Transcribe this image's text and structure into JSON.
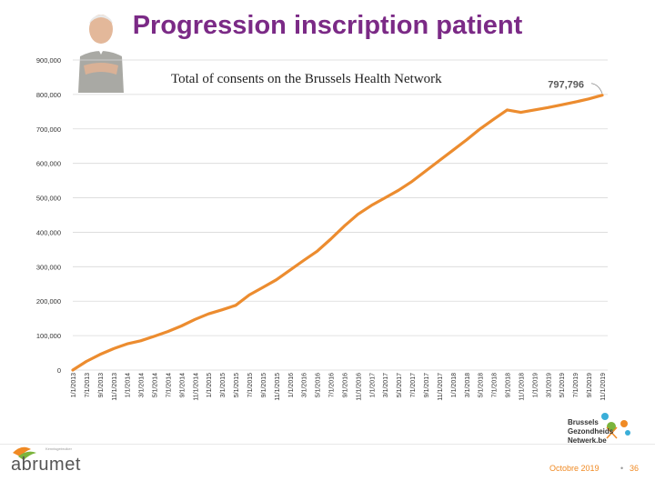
{
  "slide": {
    "title": "Progression inscription patient",
    "footer_date": "Octobre 2019",
    "footer_separator": "•",
    "page_number": "36",
    "logo_left_small": "Kennisgebruiker",
    "logo_left_text": "abrumet",
    "logo_right_line1": "Brussels",
    "logo_right_line2": "Gezondheids",
    "logo_right_line3": "Netwerk.be"
  },
  "colors": {
    "title": "#7b2a86",
    "line": "#ec8c2f",
    "grid": "#d9d9d9",
    "footer": "#f08a24"
  },
  "chart_data": {
    "type": "line",
    "title": "Total of consents on the Brussels Health Network",
    "xlabel": "",
    "ylabel": "",
    "ylim": [
      0,
      900000
    ],
    "yticks": [
      "0",
      "100,000",
      "200,000",
      "300,000",
      "400,000",
      "500,000",
      "600,000",
      "700,000",
      "800,000",
      "900,000"
    ],
    "grid": true,
    "final_label": "797,796",
    "x_labels": [
      "1/1/2013",
      "7/1/2013",
      "9/1/2013",
      "11/1/2013",
      "1/1/2014",
      "3/1/2014",
      "5/1/2014",
      "7/1/2014",
      "9/1/2014",
      "11/1/2014",
      "1/1/2015",
      "3/1/2015",
      "5/1/2015",
      "7/1/2015",
      "9/1/2015",
      "11/1/2015",
      "1/1/2016",
      "3/1/2016",
      "5/1/2016",
      "7/1/2016",
      "9/1/2016",
      "11/1/2016",
      "1/1/2017",
      "3/1/2017",
      "5/1/2017",
      "7/1/2017",
      "9/1/2017",
      "11/1/2017",
      "1/1/2018",
      "3/1/2018",
      "5/1/2018",
      "7/1/2018",
      "9/1/2018",
      "11/1/2018",
      "1/1/2019",
      "3/1/2019",
      "5/1/2019",
      "7/1/2019",
      "9/1/2019",
      "11/1/2019"
    ],
    "series": [
      {
        "name": "",
        "values": [
          0,
          25000,
          45000,
          62000,
          76000,
          85000,
          98000,
          112000,
          128000,
          147000,
          163000,
          175000,
          188000,
          218000,
          240000,
          262000,
          290000,
          318000,
          345000,
          380000,
          418000,
          452000,
          478000,
          500000,
          522000,
          548000,
          578000,
          608000,
          638000,
          668000,
          700000,
          728000,
          755000,
          748000,
          755000,
          762000,
          770000,
          778000,
          787000,
          797796
        ]
      }
    ]
  }
}
